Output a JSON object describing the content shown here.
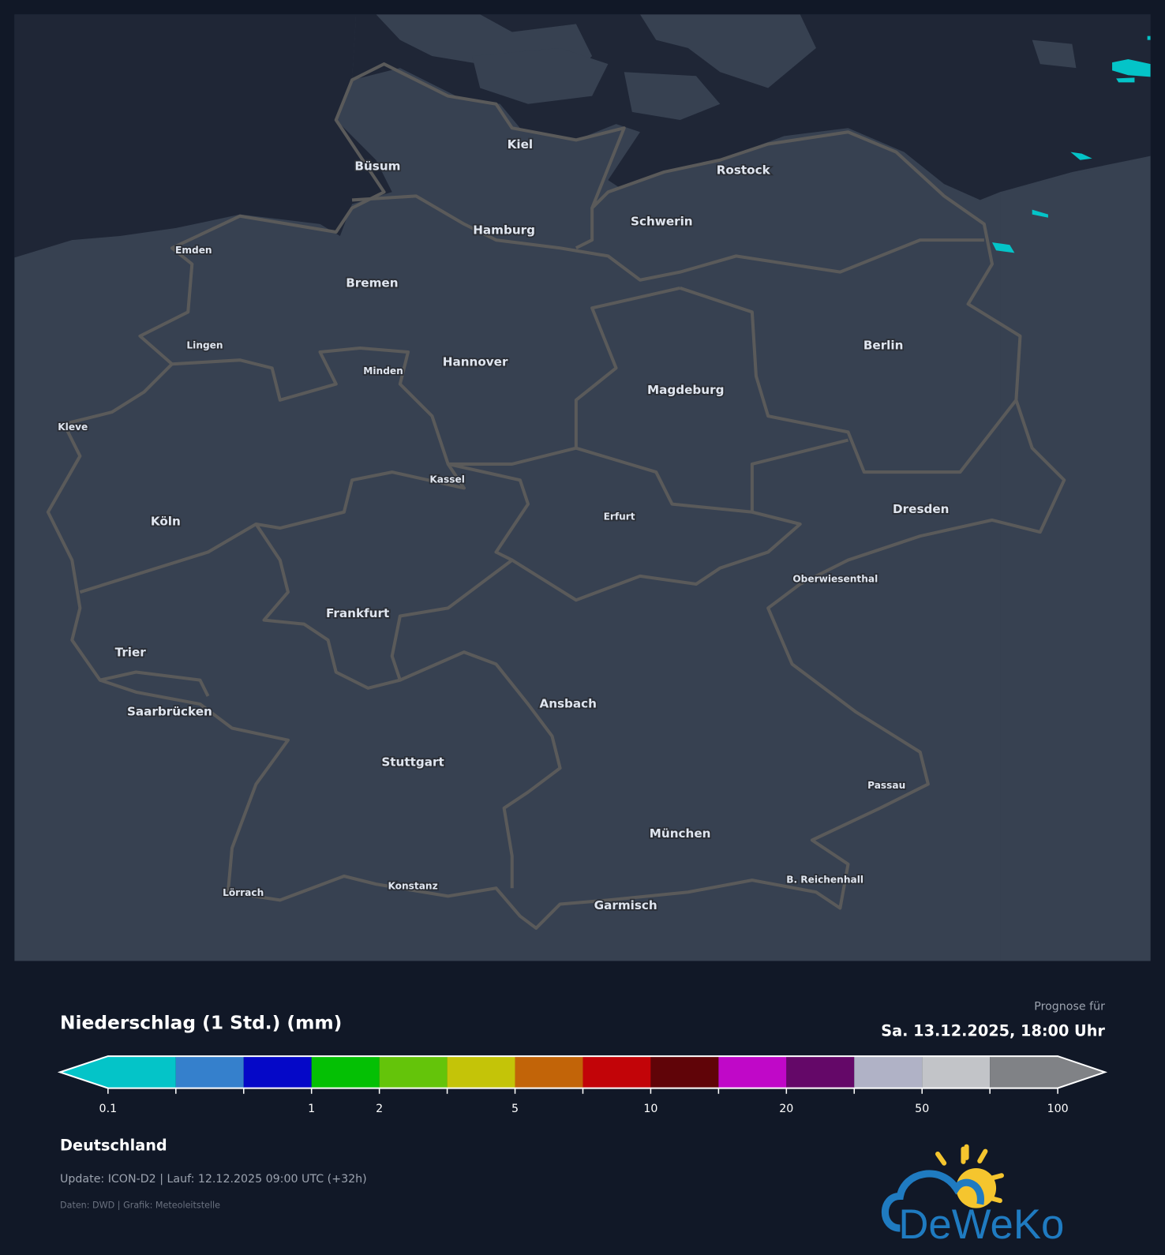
{
  "map": {
    "land_color": "#374151",
    "sea_color": "#1f2636",
    "border_color": "#5a5a5a",
    "precip_color": "#04c4c8",
    "cities": [
      "Kiel",
      "Büsum",
      "Rostock",
      "Schwerin",
      "Hamburg",
      "Emden",
      "Bremen",
      "Lingen",
      "Minden",
      "Hannover",
      "Berlin",
      "Magdeburg",
      "Kleve",
      "Kassel",
      "Köln",
      "Erfurt",
      "Dresden",
      "Oberwiesenthal",
      "Frankfurt",
      "Trier",
      "Saarbrücken",
      "Ansbach",
      "Stuttgart",
      "Passau",
      "München",
      "B. Reichenhall",
      "Lörrach",
      "Konstanz",
      "Garmisch"
    ]
  },
  "legend": {
    "title": "Niederschlag (1 Std.) (mm)",
    "forecast_label": "Prognose für",
    "forecast_date": "Sa. 13.12.2025, 18:00 Uhr",
    "colors": [
      "#04c4c8",
      "#3580cc",
      "#0508c8",
      "#04c004",
      "#64c40a",
      "#c4c408",
      "#c26408",
      "#c20408",
      "#600408",
      "#c008c8",
      "#640868",
      "#b0b2c6",
      "#c2c4c8",
      "#808286"
    ],
    "tick_labels": [
      {
        "index": 0,
        "label": "0.1"
      },
      {
        "index": 3,
        "label": "1"
      },
      {
        "index": 4,
        "label": "2"
      },
      {
        "index": 6,
        "label": "5"
      },
      {
        "index": 8,
        "label": "10"
      },
      {
        "index": 10,
        "label": "20"
      },
      {
        "index": 12,
        "label": "50"
      },
      {
        "index": 14,
        "label": "100"
      }
    ]
  },
  "footer": {
    "region": "Deutschland",
    "update": "Update: ICON-D2 | Lauf: 12.12.2025 09:00 UTC (+32h)",
    "credit": "Daten: DWD | Grafik: Meteoleitstelle",
    "logo_text": "DeWeKo"
  }
}
